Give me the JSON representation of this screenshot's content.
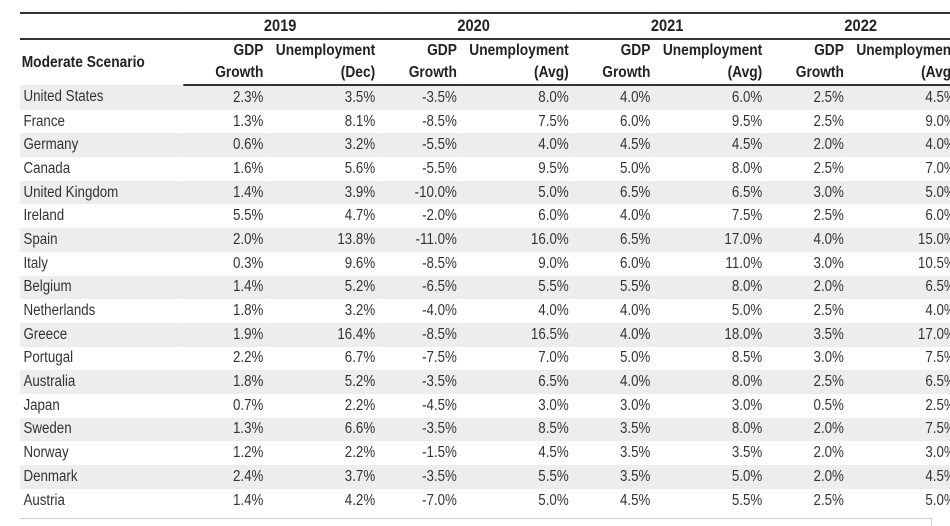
{
  "table": {
    "row_header_label": "Moderate Scenario",
    "years": [
      "2019",
      "2020",
      "2021",
      "2022"
    ],
    "subheads": [
      {
        "gdp_top": "GDP",
        "gdp_bottom": "Growth",
        "unemp_top": "Unemployment",
        "unemp_bottom": "(Dec)"
      },
      {
        "gdp_top": "GDP",
        "gdp_bottom": "Growth",
        "unemp_top": "Unemployment",
        "unemp_bottom": "(Avg)"
      },
      {
        "gdp_top": "GDP",
        "gdp_bottom": "Growth",
        "unemp_top": "Unemployment",
        "unemp_bottom": "(Avg)"
      },
      {
        "gdp_top": "GDP",
        "gdp_bottom": "Growth",
        "unemp_top": "Unemployment",
        "unemp_bottom": "(Avg)"
      }
    ],
    "rows": [
      {
        "country": "United States",
        "values": [
          "2.3%",
          "3.5%",
          "-3.5%",
          "8.0%",
          "4.0%",
          "6.0%",
          "2.5%",
          "4.5%"
        ]
      },
      {
        "country": "France",
        "values": [
          "1.3%",
          "8.1%",
          "-8.5%",
          "7.5%",
          "6.0%",
          "9.5%",
          "2.5%",
          "9.0%"
        ]
      },
      {
        "country": "Germany",
        "values": [
          "0.6%",
          "3.2%",
          "-5.5%",
          "4.0%",
          "4.5%",
          "4.5%",
          "2.0%",
          "4.0%"
        ]
      },
      {
        "country": "Canada",
        "values": [
          "1.6%",
          "5.6%",
          "-5.5%",
          "9.5%",
          "5.0%",
          "8.0%",
          "2.5%",
          "7.0%"
        ]
      },
      {
        "country": "United Kingdom",
        "values": [
          "1.4%",
          "3.9%",
          "-10.0%",
          "5.0%",
          "6.5%",
          "6.5%",
          "3.0%",
          "5.0%"
        ]
      },
      {
        "country": "Ireland",
        "values": [
          "5.5%",
          "4.7%",
          "-2.0%",
          "6.0%",
          "4.0%",
          "7.5%",
          "2.5%",
          "6.0%"
        ]
      },
      {
        "country": "Spain",
        "values": [
          "2.0%",
          "13.8%",
          "-11.0%",
          "16.0%",
          "6.5%",
          "17.0%",
          "4.0%",
          "15.0%"
        ]
      },
      {
        "country": "Italy",
        "values": [
          "0.3%",
          "9.6%",
          "-8.5%",
          "9.0%",
          "6.0%",
          "11.0%",
          "3.0%",
          "10.5%"
        ]
      },
      {
        "country": "Belgium",
        "values": [
          "1.4%",
          "5.2%",
          "-6.5%",
          "5.5%",
          "5.5%",
          "8.0%",
          "2.0%",
          "6.5%"
        ]
      },
      {
        "country": "Netherlands",
        "values": [
          "1.8%",
          "3.2%",
          "-4.0%",
          "4.0%",
          "4.0%",
          "5.0%",
          "2.5%",
          "4.0%"
        ]
      },
      {
        "country": "Greece",
        "values": [
          "1.9%",
          "16.4%",
          "-8.5%",
          "16.5%",
          "4.0%",
          "18.0%",
          "3.5%",
          "17.0%"
        ]
      },
      {
        "country": "Portugal",
        "values": [
          "2.2%",
          "6.7%",
          "-7.5%",
          "7.0%",
          "5.0%",
          "8.5%",
          "3.0%",
          "7.5%"
        ]
      },
      {
        "country": "Australia",
        "values": [
          "1.8%",
          "5.2%",
          "-3.5%",
          "6.5%",
          "4.0%",
          "8.0%",
          "2.5%",
          "6.5%"
        ]
      },
      {
        "country": "Japan",
        "values": [
          "0.7%",
          "2.2%",
          "-4.5%",
          "3.0%",
          "3.0%",
          "3.0%",
          "0.5%",
          "2.5%"
        ]
      },
      {
        "country": "Sweden",
        "values": [
          "1.3%",
          "6.6%",
          "-3.5%",
          "8.5%",
          "3.5%",
          "8.0%",
          "2.0%",
          "7.5%"
        ]
      },
      {
        "country": "Norway",
        "values": [
          "1.2%",
          "2.2%",
          "-1.5%",
          "4.5%",
          "3.5%",
          "3.5%",
          "2.0%",
          "3.0%"
        ]
      },
      {
        "country": "Denmark",
        "values": [
          "2.4%",
          "3.7%",
          "-3.5%",
          "5.5%",
          "3.5%",
          "5.0%",
          "2.0%",
          "4.5%"
        ]
      },
      {
        "country": "Austria",
        "values": [
          "1.4%",
          "4.2%",
          "-7.0%",
          "5.0%",
          "4.5%",
          "5.5%",
          "2.5%",
          "5.0%"
        ]
      }
    ],
    "row_shading": "alternate-gray",
    "shade_color": "#ededed"
  }
}
